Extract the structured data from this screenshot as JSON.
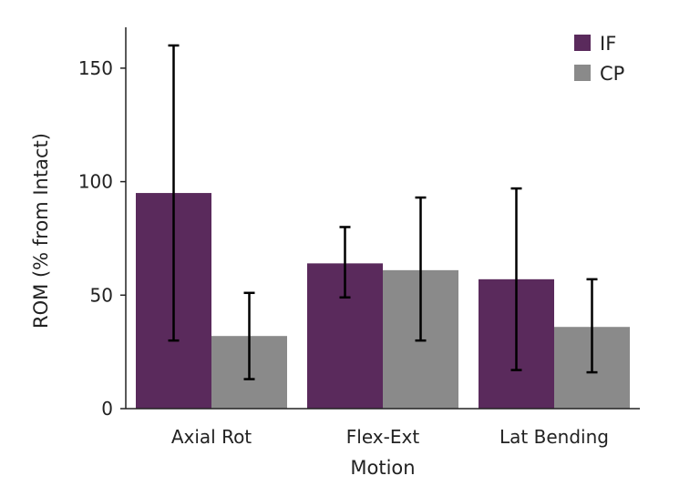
{
  "chart_data": {
    "type": "bar",
    "categories": [
      "Axial Rot",
      "Flex-Ext",
      "Lat Bending"
    ],
    "series": [
      {
        "name": "IF",
        "color": "#5a2a5c",
        "values": [
          95,
          64,
          57
        ],
        "error_low": [
          30,
          49,
          17
        ],
        "error_high": [
          160,
          80,
          97
        ]
      },
      {
        "name": "CP",
        "color": "#8a8a8a",
        "values": [
          32,
          61,
          36
        ],
        "error_low": [
          13,
          30,
          16
        ],
        "error_high": [
          51,
          93,
          57
        ]
      }
    ],
    "title": "",
    "xlabel": "Motion",
    "ylabel": "ROM (% from Intact)",
    "ylim": [
      0,
      168
    ],
    "yticks": [
      0,
      50,
      100,
      150
    ],
    "grid": false,
    "legend": "top-right"
  }
}
